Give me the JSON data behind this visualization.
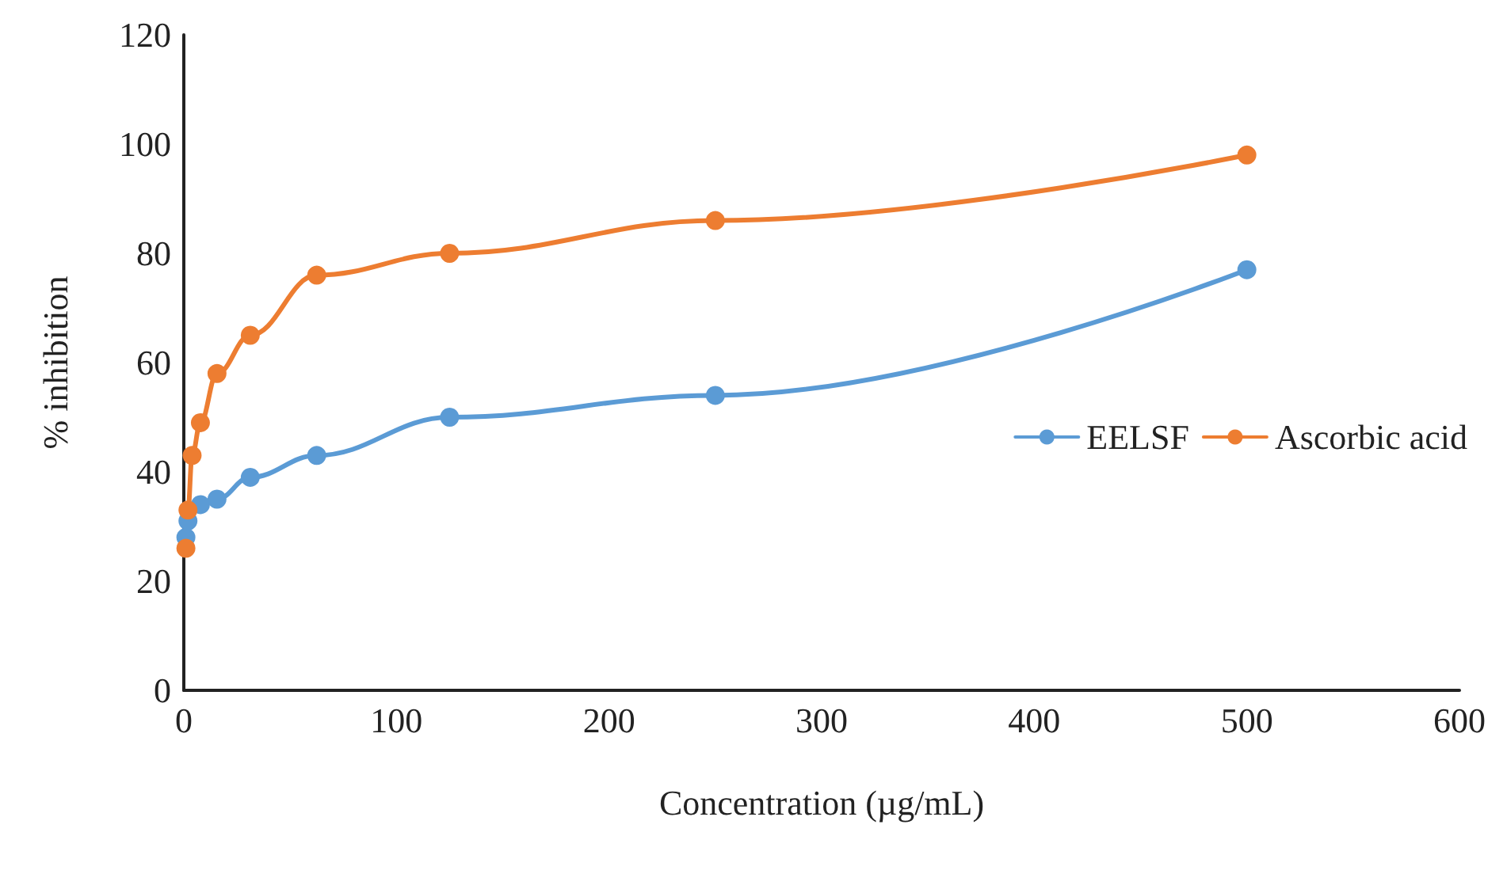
{
  "chart_data": {
    "type": "line",
    "xlabel": "Concentration (µg/mL)",
    "ylabel": "% inhibition",
    "x": [
      0.98,
      1.95,
      3.9,
      7.8,
      15.6,
      31.25,
      62.5,
      125,
      250,
      500
    ],
    "series": [
      {
        "name": "EELSF",
        "color": "#5b9bd5",
        "values": [
          28,
          31,
          null,
          34,
          35,
          39,
          43,
          50,
          54,
          77
        ]
      },
      {
        "name": "Ascorbic acid",
        "color": "#ed7d31",
        "values": [
          26,
          33,
          43,
          49,
          58,
          65,
          76,
          80,
          86,
          98
        ]
      }
    ],
    "xlim": [
      0,
      600
    ],
    "xticks": [
      0,
      100,
      200,
      300,
      400,
      500,
      600
    ],
    "ylim": [
      0,
      120
    ],
    "yticks": [
      0,
      20,
      40,
      60,
      80,
      100,
      120
    ],
    "grid": false,
    "legend": "right",
    "marker": "circle",
    "line_style": "solid"
  }
}
